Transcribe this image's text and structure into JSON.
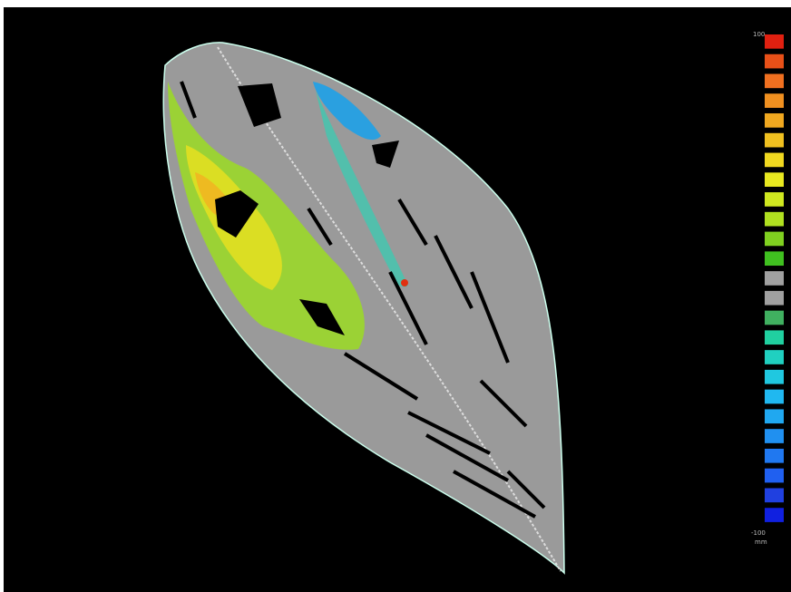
{
  "scale": {
    "max_label": "100",
    "min_label": "-100",
    "unit": "mm",
    "colors": [
      "#e02010",
      "#e85018",
      "#f07020",
      "#f09020",
      "#f0a820",
      "#f0c020",
      "#f0d820",
      "#e8e820",
      "#d0e820",
      "#b0e020",
      "#80d020",
      "#40c020",
      "#a0a0a0",
      "#a0a0a0",
      "#40b060",
      "#20d0a0",
      "#20d0c0",
      "#20c8e0",
      "#20b8f0",
      "#20a8f0",
      "#2090f0",
      "#2078f0",
      "#2060f0",
      "#2040e0",
      "#1020e0"
    ]
  }
}
